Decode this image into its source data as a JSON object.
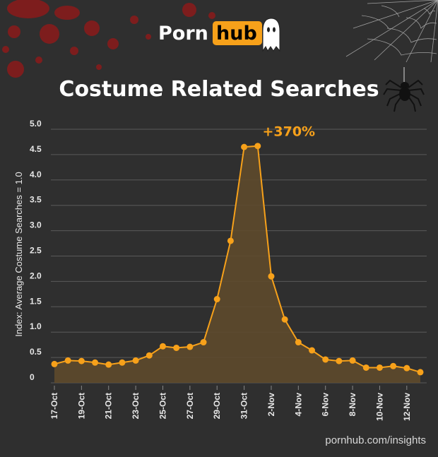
{
  "brand": {
    "part1": "Porn",
    "part2": "hub"
  },
  "footer": "pornhub.com/insights",
  "colors": {
    "background": "#2f2f2f",
    "accent": "#f7a11a",
    "area": "#5e4a2c",
    "blood": "#8b1a1a"
  },
  "decorations": [
    "ghost-icon",
    "blood-splatter",
    "spider-web",
    "spider-icon"
  ],
  "chart_data": {
    "type": "area",
    "title": "Costume Related Searches",
    "ylabel": "Index: Average Costume Searches = 1.0",
    "xlabel": "",
    "ylim": [
      0,
      5.0
    ],
    "yticks": [
      "0",
      "0.5",
      "1.0",
      "1.5",
      "2.0",
      "2.5",
      "3.0",
      "3.5",
      "4.0",
      "4.5",
      "5.0"
    ],
    "x": [
      "17-Oct",
      "18-Oct",
      "19-Oct",
      "20-Oct",
      "21-Oct",
      "22-Oct",
      "23-Oct",
      "24-Oct",
      "25-Oct",
      "26-Oct",
      "27-Oct",
      "28-Oct",
      "29-Oct",
      "30-Oct",
      "31-Oct",
      "1-Nov",
      "2-Nov",
      "3-Nov",
      "4-Nov",
      "5-Nov",
      "6-Nov",
      "7-Nov",
      "8-Nov",
      "9-Nov",
      "10-Nov",
      "11-Nov",
      "12-Nov",
      "13-Nov"
    ],
    "xtick_labels": [
      "17-Oct",
      "19-Oct",
      "21-Oct",
      "23-Oct",
      "25-Oct",
      "27-Oct",
      "29-Oct",
      "31-Oct",
      "2-Nov",
      "4-Nov",
      "6-Nov",
      "8-Nov",
      "10-Nov",
      "12-Nov"
    ],
    "values": [
      0.37,
      0.44,
      0.43,
      0.4,
      0.36,
      0.4,
      0.44,
      0.54,
      0.72,
      0.69,
      0.71,
      0.8,
      1.65,
      2.8,
      4.65,
      4.67,
      2.1,
      1.25,
      0.8,
      0.64,
      0.46,
      0.43,
      0.44,
      0.3,
      0.3,
      0.33,
      0.29,
      0.21
    ],
    "annotation": {
      "text": "+370%",
      "index": 15
    },
    "grid": true,
    "legend": "none"
  }
}
